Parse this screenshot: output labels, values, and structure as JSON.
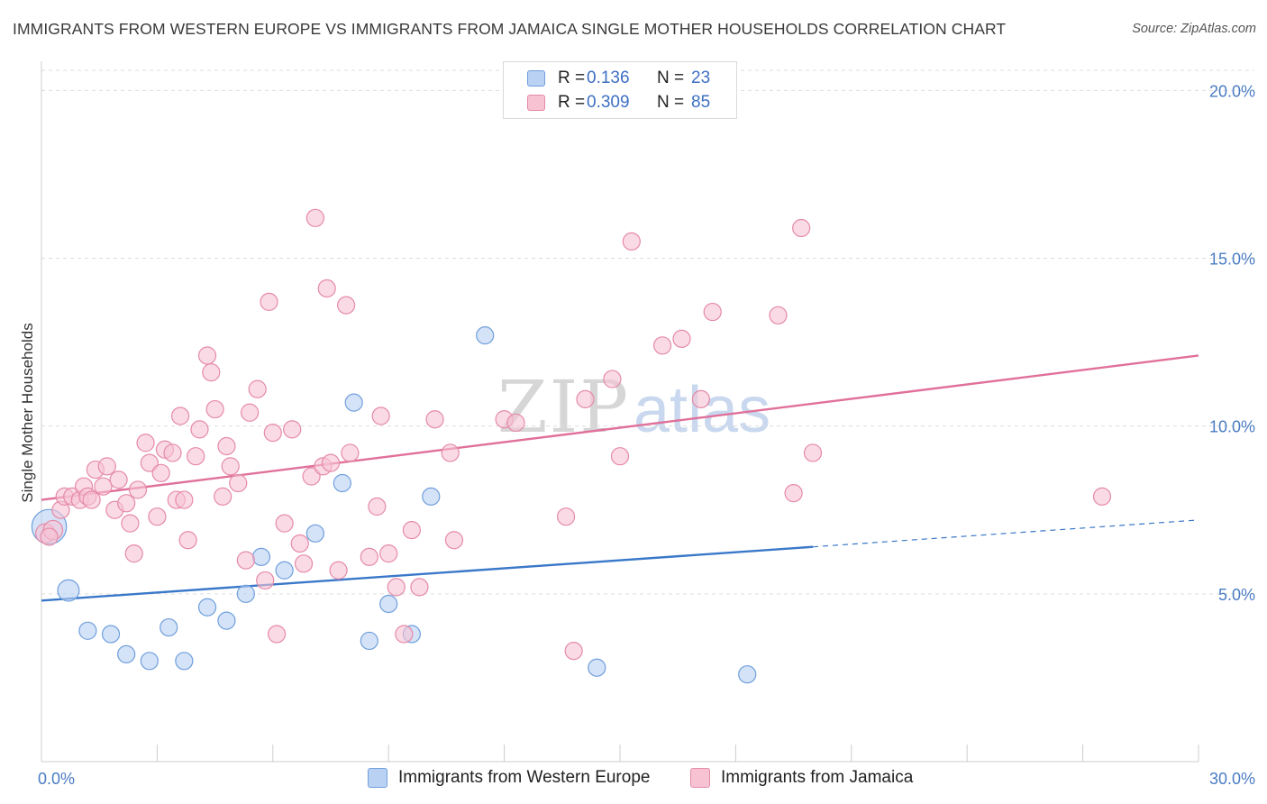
{
  "header": {
    "title": "IMMIGRANTS FROM WESTERN EUROPE VS IMMIGRANTS FROM JAMAICA SINGLE MOTHER HOUSEHOLDS CORRELATION CHART",
    "source": "Source: ZipAtlas.com"
  },
  "watermark": {
    "zip": "ZIP",
    "atlas": "atlas"
  },
  "legend": {
    "rows": [
      {
        "r_label": "R =",
        "r_value": "0.136",
        "n_label": "N =",
        "n_value": "23"
      },
      {
        "r_label": "R =",
        "r_value": "0.309",
        "n_label": "N =",
        "n_value": "85"
      }
    ]
  },
  "colors": {
    "blue_fill": "#b9d1f3",
    "blue_stroke": "#6f9fdc",
    "blue_line": "#3a78c9",
    "pink_fill": "#f7c3d3",
    "pink_stroke": "#e58aa8",
    "pink_line": "#e0709a",
    "grid": "#dddddd",
    "tick_text": "#4a7cc4"
  },
  "chart_data": {
    "type": "scatter",
    "title": "IMMIGRANTS FROM WESTERN EUROPE VS IMMIGRANTS FROM JAMAICA SINGLE MOTHER HOUSEHOLDS CORRELATION CHART",
    "xlabel": "",
    "ylabel": "Single Mother Households",
    "xlim": [
      0,
      30
    ],
    "ylim": [
      0,
      20.6
    ],
    "x_tick_labels": [
      "0.0%",
      "30.0%"
    ],
    "y_ticks": [
      5,
      10,
      15,
      20
    ],
    "y_tick_labels": [
      "5.0%",
      "10.0%",
      "15.0%",
      "20.0%"
    ],
    "grid": true,
    "legend_placement": "bottom",
    "series": [
      {
        "name": "Immigrants from Western Europe",
        "color": "blue",
        "r": 0.136,
        "n": 23,
        "trend": {
          "x0": 0,
          "y0": 4.8,
          "x1": 20.0,
          "y1": 6.4,
          "dashed_to_x": 30,
          "dashed_to_y": 7.2
        },
        "points": [
          [
            0.2,
            7.0,
            1.9
          ],
          [
            0.7,
            5.1,
            1.0
          ],
          [
            1.2,
            3.9,
            0.8
          ],
          [
            1.8,
            3.8,
            0.8
          ],
          [
            2.2,
            3.2,
            0.8
          ],
          [
            2.8,
            3.0,
            0.8
          ],
          [
            3.3,
            4.0,
            0.8
          ],
          [
            3.7,
            3.0,
            0.8
          ],
          [
            4.3,
            4.6,
            0.8
          ],
          [
            4.8,
            4.2,
            0.8
          ],
          [
            5.3,
            5.0,
            0.8
          ],
          [
            5.7,
            6.1,
            0.8
          ],
          [
            6.3,
            5.7,
            0.8
          ],
          [
            7.1,
            6.8,
            0.8
          ],
          [
            7.8,
            8.3,
            0.8
          ],
          [
            8.1,
            10.7,
            0.8
          ],
          [
            8.5,
            3.6,
            0.8
          ],
          [
            9.0,
            4.7,
            0.8
          ],
          [
            9.6,
            3.8,
            0.8
          ],
          [
            10.1,
            7.9,
            0.8
          ],
          [
            11.5,
            12.7,
            0.8
          ],
          [
            14.4,
            2.8,
            0.8
          ],
          [
            18.3,
            2.6,
            0.8
          ]
        ]
      },
      {
        "name": "Immigrants from Jamaica",
        "color": "pink",
        "r": 0.309,
        "n": 85,
        "trend": {
          "x0": 0,
          "y0": 7.8,
          "x1": 30,
          "y1": 12.1
        },
        "points": [
          [
            0.1,
            6.8,
            0.9
          ],
          [
            0.3,
            6.9,
            0.9
          ],
          [
            0.5,
            7.5,
            0.8
          ],
          [
            0.6,
            7.9,
            0.8
          ],
          [
            0.8,
            7.9,
            0.8
          ],
          [
            1.0,
            7.8,
            0.8
          ],
          [
            1.1,
            8.2,
            0.8
          ],
          [
            1.2,
            7.9,
            0.8
          ],
          [
            1.3,
            7.8,
            0.8
          ],
          [
            1.4,
            8.7,
            0.8
          ],
          [
            1.6,
            8.2,
            0.8
          ],
          [
            1.7,
            8.8,
            0.8
          ],
          [
            1.9,
            7.5,
            0.8
          ],
          [
            2.0,
            8.4,
            0.8
          ],
          [
            2.2,
            7.7,
            0.8
          ],
          [
            2.3,
            7.1,
            0.8
          ],
          [
            2.4,
            6.2,
            0.8
          ],
          [
            2.5,
            8.1,
            0.8
          ],
          [
            2.7,
            9.5,
            0.8
          ],
          [
            2.8,
            8.9,
            0.8
          ],
          [
            3.0,
            7.3,
            0.8
          ],
          [
            3.1,
            8.6,
            0.8
          ],
          [
            3.2,
            9.3,
            0.8
          ],
          [
            3.4,
            9.2,
            0.8
          ],
          [
            3.5,
            7.8,
            0.8
          ],
          [
            3.6,
            10.3,
            0.8
          ],
          [
            3.7,
            7.8,
            0.8
          ],
          [
            3.8,
            6.6,
            0.8
          ],
          [
            4.0,
            9.1,
            0.8
          ],
          [
            4.1,
            9.9,
            0.8
          ],
          [
            4.3,
            12.1,
            0.8
          ],
          [
            4.4,
            11.6,
            0.8
          ],
          [
            4.5,
            10.5,
            0.8
          ],
          [
            4.7,
            7.9,
            0.8
          ],
          [
            4.8,
            9.4,
            0.8
          ],
          [
            4.9,
            8.8,
            0.8
          ],
          [
            5.1,
            8.3,
            0.8
          ],
          [
            5.3,
            6.0,
            0.8
          ],
          [
            5.4,
            10.4,
            0.8
          ],
          [
            5.6,
            11.1,
            0.8
          ],
          [
            5.8,
            5.4,
            0.8
          ],
          [
            5.9,
            13.7,
            0.8
          ],
          [
            6.0,
            9.8,
            0.8
          ],
          [
            6.1,
            3.8,
            0.8
          ],
          [
            6.3,
            7.1,
            0.8
          ],
          [
            6.5,
            9.9,
            0.8
          ],
          [
            6.7,
            6.5,
            0.8
          ],
          [
            6.8,
            5.9,
            0.8
          ],
          [
            7.0,
            8.5,
            0.8
          ],
          [
            7.1,
            16.2,
            0.8
          ],
          [
            7.3,
            8.8,
            0.8
          ],
          [
            7.4,
            14.1,
            0.8
          ],
          [
            7.5,
            8.9,
            0.8
          ],
          [
            7.7,
            5.7,
            0.8
          ],
          [
            7.9,
            13.6,
            0.8
          ],
          [
            8.0,
            9.2,
            0.8
          ],
          [
            8.5,
            6.1,
            0.8
          ],
          [
            8.7,
            7.6,
            0.8
          ],
          [
            8.8,
            10.3,
            0.8
          ],
          [
            9.0,
            6.2,
            0.8
          ],
          [
            9.2,
            5.2,
            0.8
          ],
          [
            9.4,
            3.8,
            0.8
          ],
          [
            9.6,
            6.9,
            0.8
          ],
          [
            9.8,
            5.2,
            0.8
          ],
          [
            10.2,
            10.2,
            0.8
          ],
          [
            10.6,
            9.2,
            0.8
          ],
          [
            10.7,
            6.6,
            0.8
          ],
          [
            12.0,
            10.2,
            0.8
          ],
          [
            12.3,
            10.1,
            0.8
          ],
          [
            13.6,
            7.3,
            0.8
          ],
          [
            13.8,
            3.3,
            0.8
          ],
          [
            14.1,
            10.8,
            0.8
          ],
          [
            14.8,
            11.4,
            0.8
          ],
          [
            15.0,
            9.1,
            0.8
          ],
          [
            15.3,
            15.5,
            0.8
          ],
          [
            16.1,
            12.4,
            0.8
          ],
          [
            16.6,
            12.6,
            0.8
          ],
          [
            17.1,
            10.8,
            0.8
          ],
          [
            17.4,
            13.4,
            0.8
          ],
          [
            19.1,
            13.3,
            0.8
          ],
          [
            19.5,
            8.0,
            0.8
          ],
          [
            19.7,
            15.9,
            0.8
          ],
          [
            20.0,
            9.2,
            0.8
          ],
          [
            27.5,
            7.9,
            0.8
          ],
          [
            0.2,
            6.7,
            0.8
          ]
        ]
      }
    ]
  },
  "bottom_legend": {
    "items": [
      {
        "label": "Immigrants from Western Europe"
      },
      {
        "label": "Immigrants from Jamaica"
      }
    ]
  }
}
